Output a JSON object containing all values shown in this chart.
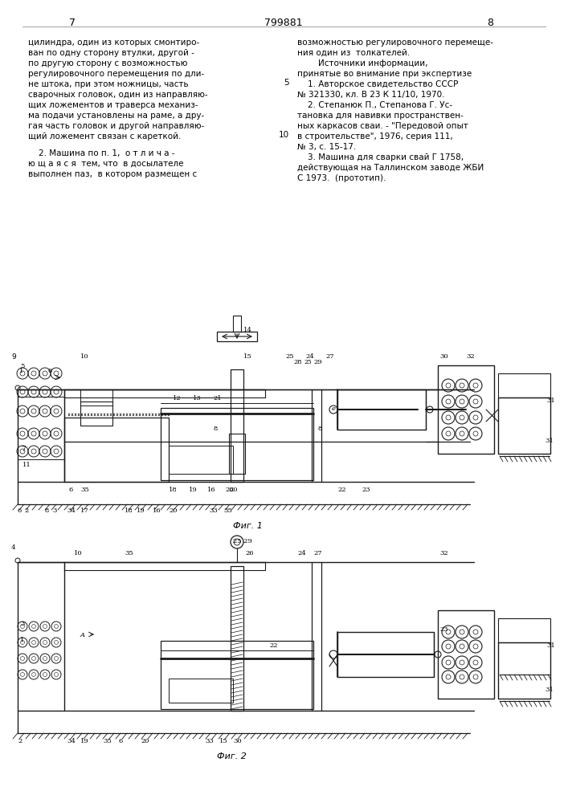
{
  "page_number_left": "7",
  "patent_number": "799881",
  "page_number_right": "8",
  "bg_color": "#ffffff",
  "text_color": "#000000",
  "left_col_text": [
    "цилиндра, один из которых смонтиро-",
    "ван по одну сторону втулки, другой -",
    "по другую сторону с возможностью",
    "регулировочного перемещения по дли-",
    "не штока, при этом ножницы, часть",
    "сварочных головок, один из направляю-",
    "щих ложементов и траверса механиз-",
    "ма подачи установлены на раме, а дру-",
    "гая часть головок и другой направляю-",
    "щий ложемент связан с кареткой."
  ],
  "left_col_text2": [
    "    2. Машина по п. 1,  о т л и ч а -",
    "ю щ а я с я  тем, что  в досылателе",
    "выполнен паз,  в котором размещен с"
  ],
  "right_col_text": [
    "возможностью регулировочного перемеще-",
    "ния один из  толкателей.",
    "        Источники информации,",
    "принятые во внимание при экспертизе",
    "    1. Авторское свидетельство СССР",
    "№ 321330, кл. В 23 К 11/10, 1970.",
    "    2. Степанюк П., Степанова Г. Ус-",
    "тановка для навивки пространствен-",
    "ных каркасов сваи. - \"Передовой опыт",
    "в строительстве\", 1976, серия 111,",
    "№ 3, с. 15-17.",
    "    3. Машина для сварки свай Г 1758,",
    "действующая на Таллинском заводе ЖБИ",
    "С 1973.  (прототип)."
  ],
  "line_number_5": "5",
  "line_number_10": "10",
  "fig1_caption": "Фиг. 1",
  "fig2_caption": "Фиг. 2"
}
